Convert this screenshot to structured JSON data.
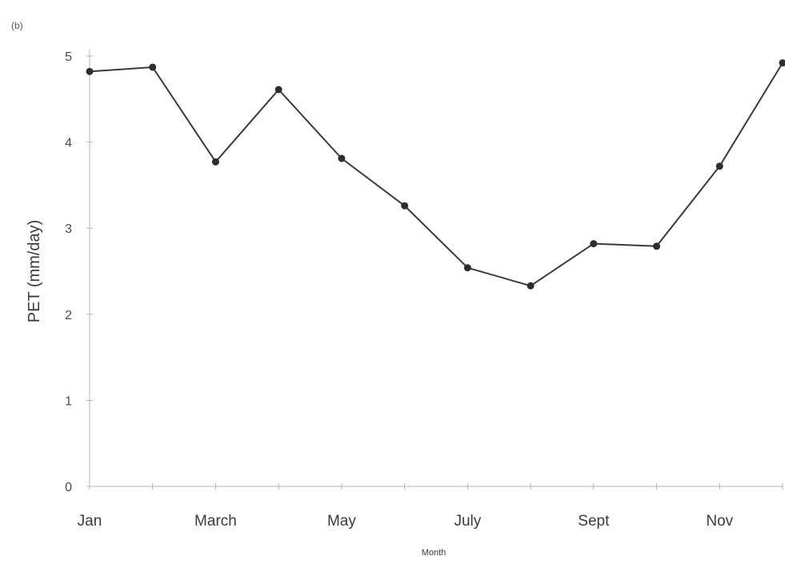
{
  "panel_label": "(b)",
  "chart_data": {
    "type": "line",
    "title": "",
    "xlabel": "Month",
    "ylabel": "PET (mm/day)",
    "ylim": [
      0,
      5
    ],
    "yticks": [
      0,
      1,
      2,
      3,
      4,
      5
    ],
    "xtick_labels": [
      "Jan",
      "",
      "March",
      "",
      "May",
      "",
      "July",
      "",
      "Sept",
      "",
      "Nov",
      ""
    ],
    "grid": false,
    "legend": "none",
    "colors": {
      "line": "#3a3a3a",
      "marker": "#2e2e2e",
      "axis": "#b5b5b5",
      "text": "#3a3a3a"
    },
    "series": [
      {
        "values": [
          4.82,
          4.87,
          3.77,
          4.61,
          3.81,
          3.26,
          2.54,
          2.33,
          2.82,
          2.79,
          3.72,
          4.92
        ]
      }
    ]
  }
}
